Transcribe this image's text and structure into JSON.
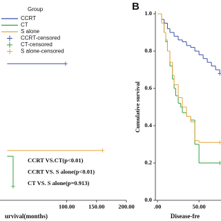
{
  "chart_data": [
    {
      "type": "line",
      "step": true,
      "legend_title": "Group",
      "censored_labels": [
        "CCRT-censored",
        "CT-censored",
        "S alone-censored"
      ],
      "annotations": [
        "CCRT VS.CT(p<0.01)",
        "CCRT VS. S alone(p<0.01)",
        "CT VS. S alone(p=0.913)"
      ],
      "x_label": "urvival(months)",
      "xlim": [
        -12,
        200
      ],
      "ylim": [
        0,
        1
      ],
      "xticks": [
        {
          "value": 100,
          "label": "100.00"
        },
        {
          "value": 150,
          "label": "150.00"
        },
        {
          "value": 200,
          "label": "200.00"
        }
      ],
      "series": [
        {
          "name": "CCRT",
          "color": "#3b4ea6",
          "x": [
            0,
            98
          ],
          "values": [
            0.62,
            0.62
          ]
        },
        {
          "name": "CT",
          "color": "#2e9e3e",
          "x": [
            0,
            10
          ],
          "values": [
            0.2,
            0.063
          ]
        },
        {
          "name": "S alone",
          "color": "#e8a23a",
          "x": [
            0,
            160
          ],
          "values": [
            0.226,
            0.226
          ]
        }
      ]
    },
    {
      "type": "line",
      "step": true,
      "panel_label": "B",
      "y_label": "Cumulative survival",
      "x_label": "Disease-fre",
      "xlim": [
        -2.5,
        76.5
      ],
      "ylim": [
        0,
        1
      ],
      "xticks": [
        {
          "value": 0,
          "label": ".00"
        },
        {
          "value": 50,
          "label": "50.00"
        }
      ],
      "yticks": [
        {
          "value": 0,
          "label": "0.0"
        },
        {
          "value": 0.2,
          "label": "0.2"
        },
        {
          "value": 0.4,
          "label": "0.4"
        },
        {
          "value": 0.6,
          "label": "0.6"
        },
        {
          "value": 0.8,
          "label": "0.8"
        },
        {
          "value": 1,
          "label": "1.0"
        }
      ],
      "series": [
        {
          "name": "CCRT",
          "color": "#3b4ea6",
          "x": [
            0,
            5,
            8,
            12,
            15,
            20,
            25,
            30,
            35,
            40,
            45,
            50,
            55,
            60,
            65,
            70,
            75
          ],
          "values": [
            1,
            0.97,
            0.95,
            0.92,
            0.9,
            0.88,
            0.86,
            0.85,
            0.83,
            0.82,
            0.8,
            0.78,
            0.76,
            0.74,
            0.72,
            0.7,
            0.68
          ]
        },
        {
          "name": "CT",
          "color": "#2e9e3e",
          "x": [
            0,
            5,
            8,
            10,
            12,
            15,
            18,
            20,
            22,
            25,
            28,
            30,
            35,
            40,
            45,
            50,
            55,
            75
          ],
          "values": [
            1,
            0.95,
            0.9,
            0.85,
            0.8,
            0.72,
            0.65,
            0.6,
            0.56,
            0.52,
            0.5,
            0.47,
            0.45,
            0.43,
            0.3,
            0.2,
            0.2,
            0.2
          ]
        },
        {
          "name": "S alone",
          "color": "#e8a23a",
          "x": [
            0,
            5,
            8,
            10,
            12,
            15,
            18,
            20,
            25,
            30,
            35,
            40,
            45,
            50,
            75
          ],
          "values": [
            1,
            0.95,
            0.9,
            0.86,
            0.8,
            0.74,
            0.67,
            0.62,
            0.55,
            0.5,
            0.45,
            0.42,
            0.32,
            0.31,
            0.31
          ]
        }
      ]
    }
  ]
}
